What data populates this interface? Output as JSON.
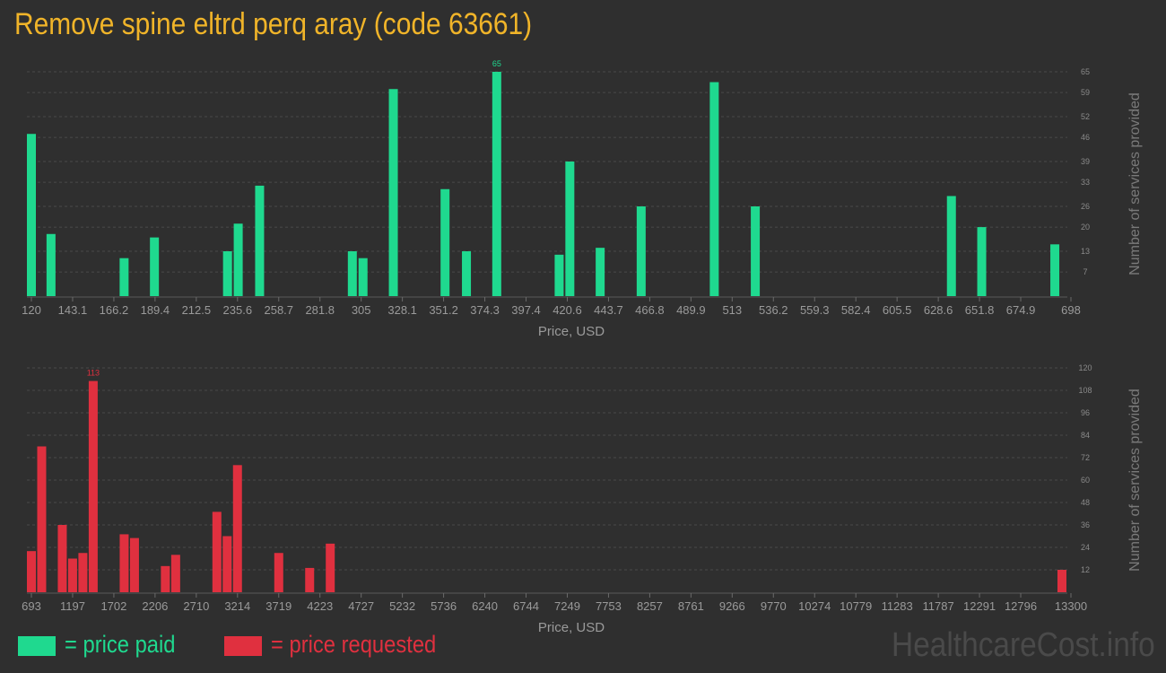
{
  "title": "Remove spine eltrd perq aray (code 63661)",
  "colors": {
    "paid": "#1fd98f",
    "requested": "#e0303f",
    "title": "#f0b429"
  },
  "legend": [
    {
      "label": "= price paid",
      "color": "#1fd98f"
    },
    {
      "label": "= price requested",
      "color": "#e0303f"
    }
  ],
  "watermark": "HealthcareCost.info",
  "chart_data": [
    {
      "type": "bar",
      "title": "",
      "xlabel": "Price, USD",
      "ylabel": "Number of services provided",
      "xlim": [
        120,
        698
      ],
      "ylim": [
        0,
        65
      ],
      "grid": true,
      "color": "#1fd98f",
      "x_ticks": [
        "120",
        "143.1",
        "166.2",
        "189.4",
        "212.5",
        "235.6",
        "258.7",
        "281.8",
        "305",
        "328.1",
        "351.2",
        "374.3",
        "397.4",
        "420.6",
        "443.7",
        "466.8",
        "489.9",
        "513",
        "536.2",
        "559.3",
        "582.4",
        "605.5",
        "628.6",
        "651.8",
        "674.9",
        "698"
      ],
      "y_ticks": [
        7,
        13,
        20,
        26,
        33,
        39,
        46,
        52,
        59,
        65
      ],
      "peak_label": "65",
      "bars": [
        {
          "x": 120,
          "y": 47
        },
        {
          "x": 131,
          "y": 18
        },
        {
          "x": 172,
          "y": 11
        },
        {
          "x": 189,
          "y": 17
        },
        {
          "x": 230,
          "y": 13
        },
        {
          "x": 236,
          "y": 21
        },
        {
          "x": 248,
          "y": 32
        },
        {
          "x": 300,
          "y": 13
        },
        {
          "x": 306,
          "y": 11
        },
        {
          "x": 323,
          "y": 60
        },
        {
          "x": 352,
          "y": 31
        },
        {
          "x": 364,
          "y": 13
        },
        {
          "x": 381,
          "y": 65
        },
        {
          "x": 416,
          "y": 12
        },
        {
          "x": 422,
          "y": 39
        },
        {
          "x": 439,
          "y": 14
        },
        {
          "x": 462,
          "y": 26
        },
        {
          "x": 503,
          "y": 62
        },
        {
          "x": 526,
          "y": 26
        },
        {
          "x": 636,
          "y": 29
        },
        {
          "x": 653,
          "y": 20
        },
        {
          "x": 694,
          "y": 15
        }
      ]
    },
    {
      "type": "bar",
      "title": "",
      "xlabel": "Price, USD",
      "ylabel": "Number of services provided",
      "xlim": [
        693,
        13300
      ],
      "ylim": [
        0,
        120
      ],
      "grid": true,
      "color": "#e0303f",
      "x_ticks": [
        "693",
        "1197",
        "1702",
        "2206",
        "2710",
        "3214",
        "3719",
        "4223",
        "4727",
        "5232",
        "5736",
        "6240",
        "6744",
        "7249",
        "7753",
        "8257",
        "8761",
        "9266",
        "9770",
        "10274",
        "10779",
        "11283",
        "11787",
        "12291",
        "12796",
        "13300"
      ],
      "y_ticks": [
        12,
        24,
        36,
        48,
        60,
        72,
        84,
        96,
        108,
        120
      ],
      "peak_label": "113",
      "bars": [
        {
          "x": 693,
          "y": 22
        },
        {
          "x": 819,
          "y": 78
        },
        {
          "x": 1071,
          "y": 36
        },
        {
          "x": 1197,
          "y": 18
        },
        {
          "x": 1323,
          "y": 21
        },
        {
          "x": 1449,
          "y": 113
        },
        {
          "x": 1828,
          "y": 31
        },
        {
          "x": 1954,
          "y": 29
        },
        {
          "x": 2332,
          "y": 14
        },
        {
          "x": 2458,
          "y": 20
        },
        {
          "x": 2962,
          "y": 43
        },
        {
          "x": 3088,
          "y": 30
        },
        {
          "x": 3214,
          "y": 68
        },
        {
          "x": 3719,
          "y": 21
        },
        {
          "x": 4097,
          "y": 13
        },
        {
          "x": 4349,
          "y": 26
        },
        {
          "x": 13300,
          "y": 12
        }
      ]
    }
  ]
}
